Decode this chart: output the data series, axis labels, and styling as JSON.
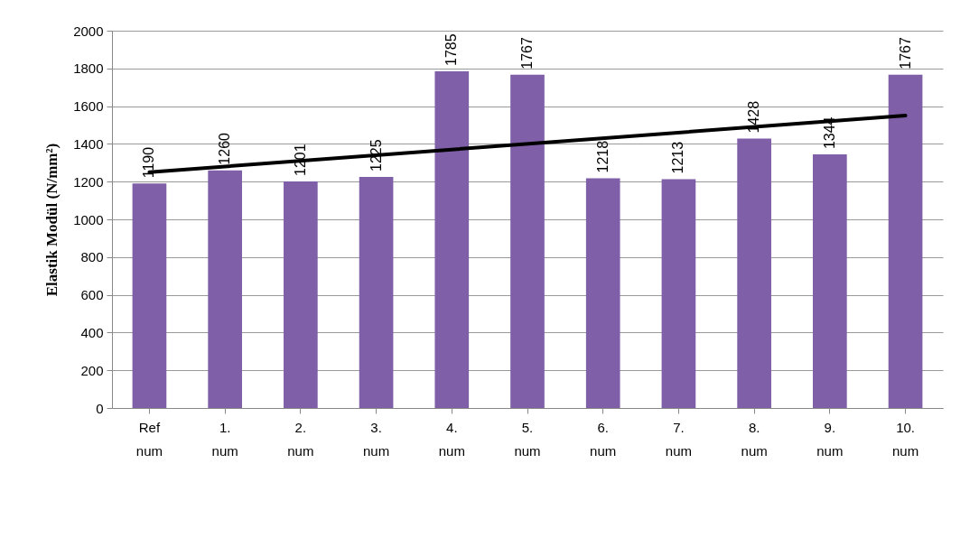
{
  "chart_data": {
    "type": "bar",
    "ylabel": "Elastik  Modül (N/mm²)",
    "categories": [
      "Ref num",
      "1. num",
      "2. num",
      "3. num",
      "4. num",
      "5. num",
      "6. num",
      "7. num",
      "8. num",
      "9. num",
      "10. num"
    ],
    "series": [
      {
        "color": "#7f5fa8",
        "values": [
          1190,
          1260,
          1201,
          1225,
          1785,
          1767,
          1218,
          1213,
          1428,
          1344,
          1767
        ],
        "value_labels": [
          "1190",
          "1260",
          "1201",
          "1225",
          "1785",
          "1767",
          "1218",
          "1213",
          "1428",
          "1344",
          "1767"
        ]
      },
      {
        "type": "line",
        "color": "#000000",
        "x": [
          "Ref num",
          "10. num"
        ],
        "values": [
          1250,
          1550
        ]
      }
    ],
    "ylim": [
      0,
      2000
    ],
    "yticks": [
      0,
      200,
      400,
      600,
      800,
      1000,
      1200,
      1400,
      1600,
      1800,
      2000
    ],
    "grid": "y"
  }
}
